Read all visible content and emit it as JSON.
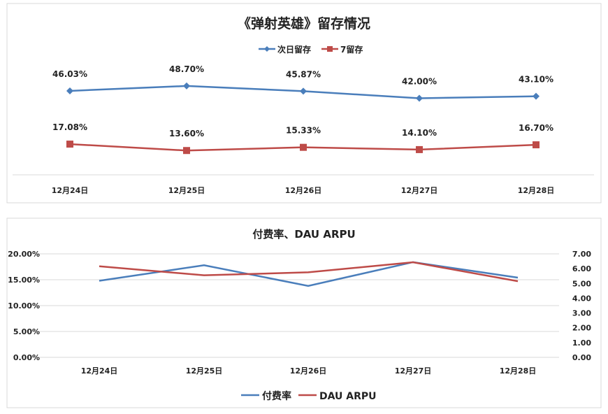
{
  "chart_data": [
    {
      "type": "line",
      "title": "《弹射英雄》留存情况",
      "categories": [
        "12月24日",
        "12月25日",
        "12月26日",
        "12月27日",
        "12月28日"
      ],
      "legend_position": "top",
      "grid": false,
      "series": [
        {
          "name": "次日留存",
          "color": "#4a7ebb",
          "marker": "diamond",
          "values": [
            46.03,
            48.7,
            45.87,
            42.0,
            43.1
          ],
          "labels": [
            "46.03%",
            "48.70%",
            "45.87%",
            "42.00%",
            "43.10%"
          ]
        },
        {
          "name": "7留存",
          "color": "#be4b48",
          "marker": "square",
          "values": [
            17.08,
            13.6,
            15.33,
            14.1,
            16.7
          ],
          "labels": [
            "17.08%",
            "13.60%",
            "15.33%",
            "14.10%",
            "16.70%"
          ]
        }
      ]
    },
    {
      "type": "line",
      "title": "付费率、DAU ARPU",
      "categories": [
        "12月24日",
        "12月25日",
        "12月26日",
        "12月27日",
        "12月28日"
      ],
      "legend_position": "bottom",
      "grid": true,
      "ylim": [
        0,
        20
      ],
      "yticks": [
        "0.00%",
        "5.00%",
        "10.00%",
        "15.00%",
        "20.00%"
      ],
      "y2lim": [
        0,
        7
      ],
      "y2ticks": [
        "0.00",
        "1.00",
        "2.00",
        "3.00",
        "4.00",
        "5.00",
        "6.00",
        "7.00"
      ],
      "series": [
        {
          "name": "付费率",
          "color": "#4a7ebb",
          "axis": "left",
          "values": [
            14.8,
            17.8,
            13.8,
            18.4,
            15.4
          ]
        },
        {
          "name": "DAU ARPU",
          "color": "#be4b48",
          "axis": "right",
          "values": [
            6.16,
            5.55,
            5.75,
            6.43,
            5.15
          ]
        }
      ]
    }
  ]
}
